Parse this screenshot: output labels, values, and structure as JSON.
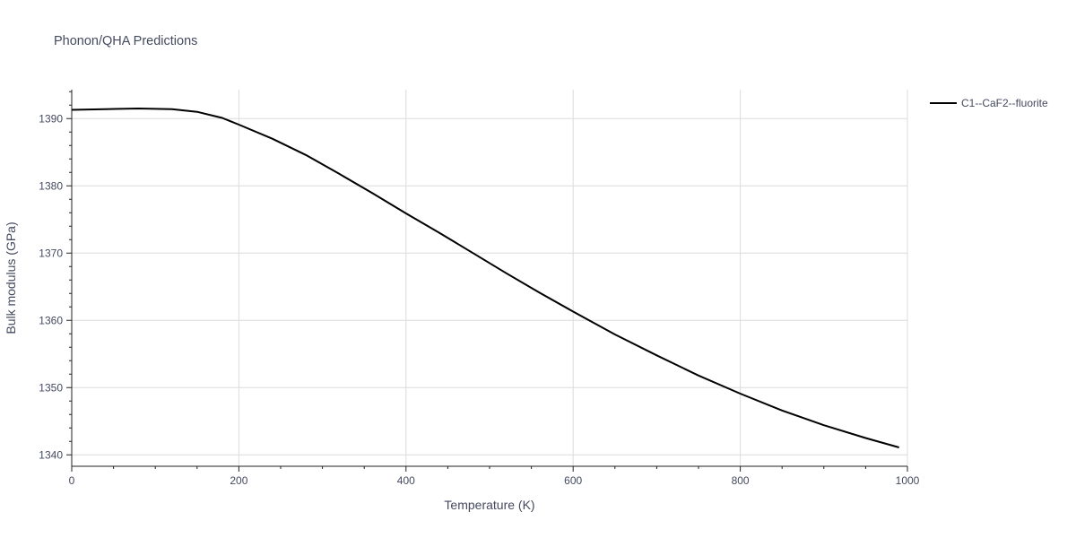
{
  "chart_data": {
    "type": "line",
    "title": "Phonon/QHA Predictions",
    "xlabel": "Temperature (K)",
    "ylabel": "Bulk modulus (GPa)",
    "xlim": [
      0,
      1000
    ],
    "ylim": [
      1338.3,
      1394.3
    ],
    "x_ticks": [
      0,
      200,
      400,
      600,
      800,
      1000
    ],
    "y_ticks": [
      1340,
      1350,
      1360,
      1370,
      1380,
      1390
    ],
    "x_tick_labels": [
      "0",
      "200",
      "400",
      "600",
      "800",
      "1000"
    ],
    "y_tick_labels": [
      "1340",
      "1350",
      "1360",
      "1370",
      "1380",
      "1390"
    ],
    "grid": true,
    "legend_position": "top-right",
    "series": [
      {
        "name": "C1--CaF2--fluorite",
        "color": "#000000",
        "x": [
          0,
          40,
          80,
          120,
          150,
          180,
          200,
          240,
          280,
          320,
          360,
          400,
          440,
          480,
          520,
          560,
          600,
          650,
          700,
          750,
          800,
          850,
          900,
          950,
          990
        ],
        "y": [
          1391.3,
          1391.4,
          1391.5,
          1391.4,
          1391.0,
          1390.1,
          1389.1,
          1387.0,
          1384.6,
          1381.8,
          1378.9,
          1375.9,
          1373.0,
          1370.0,
          1367.0,
          1364.1,
          1361.3,
          1357.9,
          1354.8,
          1351.8,
          1349.1,
          1346.6,
          1344.4,
          1342.5,
          1341.1
        ]
      }
    ]
  }
}
